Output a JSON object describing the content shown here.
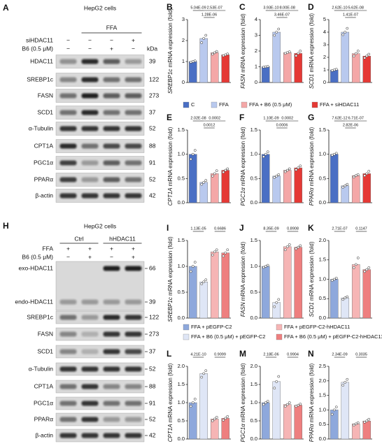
{
  "blots": [
    {
      "panel": "A",
      "title": "HepG2 cells",
      "unit": "kDa",
      "group_label": "FFA",
      "treatments": [
        {
          "name": "siHDAC11",
          "signs": [
            "−",
            "−",
            "−",
            "+"
          ]
        },
        {
          "name": "B6 (0.5 μM)",
          "signs": [
            "−",
            "−",
            "+",
            "−"
          ]
        }
      ],
      "bands": [
        {
          "name": "HDAC11",
          "kda": 39
        },
        {
          "name": "SREBP1c",
          "kda": 122
        },
        {
          "name": "FASN",
          "kda": 273
        },
        {
          "name": "SCD1",
          "kda": 37
        },
        {
          "name": "α-Tubulin",
          "kda": 52
        },
        {
          "name": "CPT1A",
          "kda": 88
        },
        {
          "name": "PGC1α",
          "kda": 91
        },
        {
          "name": "PPARα",
          "kda": 52
        },
        {
          "name": "β-actin",
          "kda": 42
        }
      ]
    },
    {
      "panel": "H",
      "title": "HepG2 cells",
      "groups": [
        "Ctrl",
        "hHDAC11"
      ],
      "treatments": [
        {
          "name": "FFA",
          "signs": [
            "+",
            "+",
            "+",
            "+"
          ]
        },
        {
          "name": "B6 (0.5 μM)",
          "signs": [
            "−",
            "+",
            "−",
            "+"
          ]
        }
      ],
      "bands": [
        {
          "name": "exo-HDAC11",
          "kda": 66
        },
        {
          "name": "endo-HDAC11",
          "kda": 39
        },
        {
          "name": "SREBP1c",
          "kda": 122
        },
        {
          "name": "FASN",
          "kda": 273
        },
        {
          "name": "SCD1",
          "kda": 37
        },
        {
          "name": "α-Tubulin",
          "kda": 52
        },
        {
          "name": "CPT1A",
          "kda": 88
        },
        {
          "name": "PGC1α",
          "kda": 91
        },
        {
          "name": "PPARα",
          "kda": 52
        },
        {
          "name": "β-actin",
          "kda": 42
        }
      ]
    }
  ],
  "legends": [
    {
      "entries": [
        {
          "name": "C",
          "color": "#4a6fc4"
        },
        {
          "name": "FFA",
          "color": "#b9c9ee"
        },
        {
          "name": "FFA + B6 (0.5 μM)",
          "color": "#f4a7a7"
        },
        {
          "name": "FFA + siHDAC11",
          "color": "#e53935"
        }
      ]
    },
    {
      "entries": [
        {
          "name": "FFA + pEGFP-C2",
          "color": "#8ea8dc"
        },
        {
          "name": "FFA + B6 (0.5 μM) + pEGFP-C2",
          "color": "#dfe6f6"
        },
        {
          "name": "FFA + pEGFP-C2-hHDAC11",
          "color": "#f6b5b5"
        },
        {
          "name": "FFA + B6 (0.5 μM) + pEGFP-C2-hHDAC11",
          "color": "#ee7f7f"
        }
      ]
    }
  ],
  "chart_data": [
    {
      "type": "bar",
      "panel": "B",
      "gene": "SREBP1c",
      "ylabel": " mRNA expression (fold)",
      "values": [
        1.0,
        2.1,
        1.42,
        1.32
      ],
      "points": [
        [
          0.97,
          1.0,
          1.03
        ],
        [
          1.9,
          2.1,
          2.25
        ],
        [
          1.35,
          1.42,
          1.48
        ],
        [
          1.28,
          1.32,
          1.36
        ]
      ],
      "colors": [
        "#4a6fc4",
        "#b9c9ee",
        "#f4a7a7",
        "#e53935"
      ],
      "ylim": [
        0,
        3
      ],
      "yticks": [
        0,
        1,
        2,
        3
      ],
      "comparisons": [
        {
          "groups": [
            0,
            1
          ],
          "label": "5.04E-09"
        },
        {
          "groups": [
            1,
            3
          ],
          "label": "2.53E-07"
        },
        {
          "groups": [
            1,
            2
          ],
          "label": "1.28E-06"
        }
      ]
    },
    {
      "type": "bar",
      "panel": "C",
      "gene": "FASN",
      "ylabel": " mRNA expression (fold)",
      "values": [
        1.0,
        3.2,
        1.9,
        1.85
      ],
      "points": [
        [
          0.98,
          1.0,
          1.02
        ],
        [
          3.0,
          3.2,
          3.4
        ],
        [
          1.85,
          1.9,
          1.95
        ],
        [
          1.7,
          1.85,
          2.0
        ]
      ],
      "colors": [
        "#4a6fc4",
        "#b9c9ee",
        "#f4a7a7",
        "#e53935"
      ],
      "ylim": [
        0,
        4
      ],
      "yticks": [
        0,
        1,
        2,
        3,
        4
      ],
      "comparisons": [
        {
          "groups": [
            0,
            1
          ],
          "label": "3.93E-10"
        },
        {
          "groups": [
            1,
            3
          ],
          "label": "8.00E-08"
        },
        {
          "groups": [
            1,
            2
          ],
          "label": "3.46E-07"
        }
      ]
    },
    {
      "type": "bar",
      "panel": "D",
      "gene": "SCD1",
      "ylabel": " mRNA expression (fold)",
      "values": [
        1.0,
        4.0,
        2.3,
        2.1
      ],
      "points": [
        [
          0.95,
          1.0,
          1.05
        ],
        [
          3.8,
          4.0,
          4.3
        ],
        [
          2.1,
          2.3,
          2.5
        ],
        [
          1.95,
          2.1,
          2.25
        ]
      ],
      "colors": [
        "#4a6fc4",
        "#b9c9ee",
        "#f4a7a7",
        "#e53935"
      ],
      "ylim": [
        0,
        5
      ],
      "yticks": [
        0,
        1,
        2,
        3,
        4,
        5
      ],
      "comparisons": [
        {
          "groups": [
            0,
            1
          ],
          "label": "2.62E-10"
        },
        {
          "groups": [
            1,
            3
          ],
          "label": "5.62E-08"
        },
        {
          "groups": [
            1,
            2
          ],
          "label": "1.41E-07"
        }
      ]
    },
    {
      "type": "bar",
      "panel": "E",
      "gene": "CPT1A",
      "ylabel": " mRNA expression (fold)",
      "values": [
        1.0,
        0.42,
        0.6,
        0.67
      ],
      "points": [
        [
          0.9,
          1.0,
          1.08
        ],
        [
          0.38,
          0.42,
          0.46
        ],
        [
          0.55,
          0.6,
          0.66
        ],
        [
          0.63,
          0.67,
          0.7
        ]
      ],
      "colors": [
        "#4a6fc4",
        "#b9c9ee",
        "#f4a7a7",
        "#e53935"
      ],
      "ylim": [
        0,
        1.5
      ],
      "yticks": [
        {
          "value": 0,
          "label": "0.0"
        },
        0.5,
        {
          "value": 1,
          "label": "1.0"
        },
        1.5
      ],
      "comparisons": [
        {
          "groups": [
            0,
            1
          ],
          "label": "2.02E-08"
        },
        {
          "groups": [
            1,
            3
          ],
          "label": "0.0002"
        },
        {
          "groups": [
            1,
            2
          ],
          "label": "0.0012"
        }
      ]
    },
    {
      "type": "bar",
      "panel": "F",
      "gene": "PGC1α",
      "ylabel": " mRNA expression (fold)",
      "values": [
        1.0,
        0.55,
        0.67,
        0.72
      ],
      "points": [
        [
          0.95,
          1.0,
          1.05
        ],
        [
          0.52,
          0.55,
          0.58
        ],
        [
          0.64,
          0.67,
          0.7
        ],
        [
          0.68,
          0.72,
          0.76
        ]
      ],
      "colors": [
        "#4a6fc4",
        "#b9c9ee",
        "#f4a7a7",
        "#e53935"
      ],
      "ylim": [
        0,
        1.5
      ],
      "yticks": [
        {
          "value": 0,
          "label": "0.0"
        },
        0.5,
        {
          "value": 1,
          "label": "1.0"
        },
        1.5
      ],
      "comparisons": [
        {
          "groups": [
            0,
            1
          ],
          "label": "1.10E-09"
        },
        {
          "groups": [
            1,
            3
          ],
          "label": "0.0002"
        },
        {
          "groups": [
            1,
            2
          ],
          "label": "0.0006"
        }
      ]
    },
    {
      "type": "bar",
      "panel": "G",
      "gene": "PPARα",
      "ylabel": " mRNA expression (fold)",
      "values": [
        1.0,
        0.35,
        0.56,
        0.6
      ],
      "points": [
        [
          0.98,
          1.0,
          1.02
        ],
        [
          0.32,
          0.35,
          0.38
        ],
        [
          0.53,
          0.56,
          0.58
        ],
        [
          0.56,
          0.6,
          0.65
        ]
      ],
      "colors": [
        "#4a6fc4",
        "#b9c9ee",
        "#f4a7a7",
        "#e53935"
      ],
      "ylim": [
        0,
        1.5
      ],
      "yticks": [
        {
          "value": 0,
          "label": "0.0"
        },
        0.5,
        {
          "value": 1,
          "label": "1.0"
        },
        1.5
      ],
      "comparisons": [
        {
          "groups": [
            0,
            1
          ],
          "label": "7.62E-12"
        },
        {
          "groups": [
            1,
            3
          ],
          "label": "6.71E-07"
        },
        {
          "groups": [
            1,
            2
          ],
          "label": "2.82E-06"
        }
      ]
    },
    {
      "type": "bar",
      "panel": "I",
      "gene": "SREBP1c",
      "ylabel": " mRNA expression (fold)",
      "values": [
        1.0,
        0.7,
        1.28,
        1.26
      ],
      "points": [
        [
          0.9,
          1.0,
          1.08
        ],
        [
          0.66,
          0.7,
          0.74
        ],
        [
          1.22,
          1.28,
          1.32
        ],
        [
          1.2,
          1.26,
          1.32
        ]
      ],
      "colors": [
        "#8ea8dc",
        "#dfe6f6",
        "#f6b5b5",
        "#ee7f7f"
      ],
      "ylim": [
        0,
        1.5
      ],
      "yticks": [
        {
          "value": 0,
          "label": "0.0"
        },
        0.5,
        {
          "value": 1,
          "label": "1.0"
        },
        1.5
      ],
      "comparisons": [
        {
          "groups": [
            0,
            1
          ],
          "label": "1.13E-05"
        },
        {
          "groups": [
            2,
            3
          ],
          "label": "0.6686"
        }
      ]
    },
    {
      "type": "bar",
      "panel": "J",
      "gene": "FASN",
      "ylabel": " mRNA expression (fold)",
      "values": [
        1.0,
        0.3,
        1.38,
        1.37
      ],
      "points": [
        [
          0.98,
          1.0,
          1.02
        ],
        [
          0.22,
          0.3,
          0.36
        ],
        [
          1.32,
          1.38,
          1.42
        ],
        [
          1.34,
          1.37,
          1.4
        ]
      ],
      "colors": [
        "#8ea8dc",
        "#dfe6f6",
        "#f6b5b5",
        "#ee7f7f"
      ],
      "ylim": [
        0,
        1.5
      ],
      "yticks": [
        {
          "value": 0,
          "label": "0.0"
        },
        0.5,
        {
          "value": 1,
          "label": "1.0"
        },
        1.5
      ],
      "comparisons": [
        {
          "groups": [
            0,
            1
          ],
          "label": "8.35E-09"
        },
        {
          "groups": [
            2,
            3
          ],
          "label": "0.8908"
        }
      ]
    },
    {
      "type": "bar",
      "panel": "K",
      "gene": "SCD1",
      "ylabel": " mRNA expression (fold)",
      "values": [
        1.0,
        0.52,
        1.38,
        1.25
      ],
      "points": [
        [
          0.97,
          1.0,
          1.03
        ],
        [
          0.48,
          0.52,
          0.55
        ],
        [
          1.3,
          1.38,
          1.55
        ],
        [
          1.2,
          1.25,
          1.3
        ]
      ],
      "colors": [
        "#8ea8dc",
        "#dfe6f6",
        "#f6b5b5",
        "#ee7f7f"
      ],
      "ylim": [
        0,
        2
      ],
      "yticks": [
        {
          "value": 0,
          "label": "0.0"
        },
        0.5,
        {
          "value": 1,
          "label": "1.0"
        },
        1.5,
        {
          "value": 2,
          "label": "2.0"
        }
      ],
      "comparisons": [
        {
          "groups": [
            0,
            1
          ],
          "label": "2.71E-07"
        },
        {
          "groups": [
            2,
            3
          ],
          "label": "0.1147"
        }
      ]
    },
    {
      "type": "bar",
      "panel": "L",
      "gene": "CPT1A",
      "ylabel": " mRNA expression (fold)",
      "values": [
        1.0,
        1.8,
        0.55,
        0.57
      ],
      "points": [
        [
          0.9,
          1.0,
          1.1
        ],
        [
          1.7,
          1.8,
          1.88
        ],
        [
          0.5,
          0.55,
          0.6
        ],
        [
          0.52,
          0.57,
          0.62
        ]
      ],
      "colors": [
        "#8ea8dc",
        "#dfe6f6",
        "#f6b5b5",
        "#ee7f7f"
      ],
      "ylim": [
        0,
        2
      ],
      "yticks": [
        {
          "value": 0,
          "label": "0.0"
        },
        0.5,
        {
          "value": 1,
          "label": "1.0"
        },
        1.5,
        {
          "value": 2,
          "label": "2.0"
        }
      ],
      "comparisons": [
        {
          "groups": [
            0,
            1
          ],
          "label": "4.21E-10"
        },
        {
          "groups": [
            2,
            3
          ],
          "label": "0.9099"
        }
      ]
    },
    {
      "type": "bar",
      "panel": "M",
      "gene": "PGC1α",
      "ylabel": " mRNA expression (fold)",
      "values": [
        1.0,
        1.58,
        0.95,
        0.93
      ],
      "points": [
        [
          0.95,
          1.0,
          1.04
        ],
        [
          1.4,
          1.58,
          1.72
        ],
        [
          0.9,
          0.95,
          1.0
        ],
        [
          0.9,
          0.93,
          0.96
        ]
      ],
      "colors": [
        "#8ea8dc",
        "#dfe6f6",
        "#f6b5b5",
        "#ee7f7f"
      ],
      "ylim": [
        0,
        2
      ],
      "yticks": [
        {
          "value": 0,
          "label": "0.0"
        },
        0.5,
        {
          "value": 1,
          "label": "1.0"
        },
        1.5,
        {
          "value": 2,
          "label": "2.0"
        }
      ],
      "comparisons": [
        {
          "groups": [
            0,
            1
          ],
          "label": "2.18E-06"
        },
        {
          "groups": [
            2,
            3
          ],
          "label": "0.9904"
        }
      ]
    },
    {
      "type": "bar",
      "panel": "N",
      "gene": "PPARα",
      "ylabel": " mRNA expression (fold)",
      "values": [
        1.0,
        1.95,
        0.52,
        0.62
      ],
      "points": [
        [
          0.85,
          1.0,
          1.1
        ],
        [
          1.85,
          1.95,
          2.05
        ],
        [
          0.48,
          0.52,
          0.56
        ],
        [
          0.58,
          0.62,
          0.68
        ]
      ],
      "colors": [
        "#8ea8dc",
        "#dfe6f6",
        "#f6b5b5",
        "#ee7f7f"
      ],
      "ylim": [
        0,
        2.5
      ],
      "yticks": [
        {
          "value": 0,
          "label": "0.0"
        },
        0.5,
        {
          "value": 1,
          "label": "1.0"
        },
        1.5,
        {
          "value": 2,
          "label": "2.0"
        },
        2.5
      ],
      "comparisons": [
        {
          "groups": [
            0,
            1
          ],
          "label": "2.34E-09"
        },
        {
          "groups": [
            2,
            3
          ],
          "label": "0.3035"
        }
      ]
    }
  ]
}
